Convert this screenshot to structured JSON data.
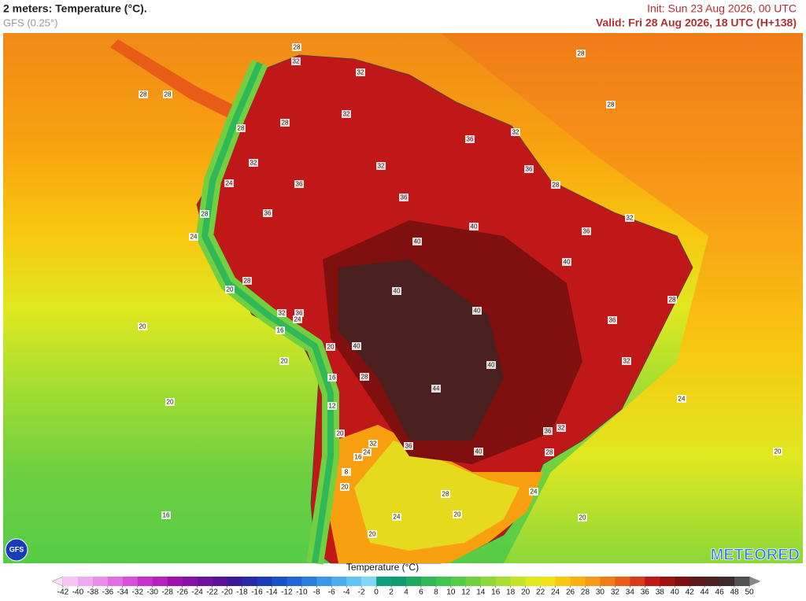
{
  "header": {
    "title": "2 meters: Temperature (°C).",
    "model": "GFS (0.25°)",
    "init": "Init: Sun 23 Aug 2026, 00 UTC",
    "valid": "Valid: Fri 28 Aug 2026, 18 UTC (H+138)"
  },
  "map": {
    "contour_labels": [
      28,
      32,
      28,
      28,
      28,
      32,
      28,
      28,
      32,
      36,
      32,
      28,
      32,
      32,
      36,
      24,
      36,
      28,
      36,
      28,
      36,
      32,
      24,
      40,
      36,
      40,
      28,
      40,
      20,
      28,
      40,
      40,
      36,
      32,
      36,
      24,
      20,
      16,
      40,
      20,
      32,
      20,
      40,
      16,
      28,
      44,
      20,
      24,
      12,
      20,
      36,
      32,
      32,
      36,
      40,
      28,
      20,
      16,
      24,
      8,
      20,
      28,
      24,
      16,
      20,
      24,
      20,
      20
    ]
  },
  "logos": {
    "model": "GFS",
    "brand": "METEORED"
  },
  "legend": {
    "title": "Temperature (°C)",
    "ticks": [
      -42,
      -40,
      -38,
      -36,
      -34,
      -32,
      -30,
      -28,
      -26,
      -24,
      -22,
      -20,
      -18,
      -16,
      -14,
      -12,
      -10,
      -8,
      -6,
      -4,
      -2,
      0,
      2,
      4,
      6,
      8,
      10,
      12,
      14,
      16,
      18,
      20,
      22,
      24,
      26,
      28,
      30,
      32,
      34,
      36,
      38,
      40,
      42,
      44,
      46,
      48,
      50
    ],
    "colors": [
      "#f4c6f4",
      "#eeaaee",
      "#e88ee8",
      "#e070e0",
      "#d850d8",
      "#cc30cc",
      "#b820c0",
      "#a010b0",
      "#8810a8",
      "#7010a0",
      "#5a1098",
      "#3a1a9a",
      "#2a2aa8",
      "#1a3cb8",
      "#1850c8",
      "#2064d8",
      "#2a7ce0",
      "#3a96e8",
      "#4aaeee",
      "#60c4f0",
      "#80d8f4",
      "#10a080",
      "#109a70",
      "#20aa60",
      "#30b858",
      "#40c450",
      "#55cc48",
      "#70d040",
      "#8cd838",
      "#a8de30",
      "#c4e428",
      "#e0e820",
      "#f0e018",
      "#f8c810",
      "#f8b010",
      "#f89818",
      "#f07c18",
      "#e85c18",
      "#d83a18",
      "#c01818",
      "#a01010",
      "#801010",
      "#601818",
      "#4a2020",
      "#3a2a2a",
      "#505050"
    ],
    "under_color": "#f8dcf8",
    "over_color": "#888888"
  }
}
